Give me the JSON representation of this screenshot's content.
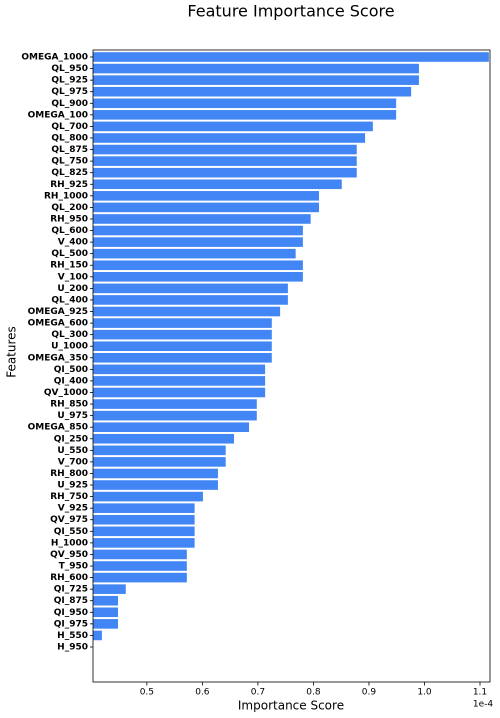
{
  "chart_data": {
    "type": "barh",
    "title": "Feature Importance Score",
    "x_label": "Importance Score",
    "y_label": "Features",
    "offset_label": "1e-4",
    "color": "#4285f4",
    "categories": [
      "OMEGA_1000",
      "QL_950",
      "QL_925",
      "QL_975",
      "QL_900",
      "OMEGA_100",
      "QL_700",
      "QL_800",
      "QL_875",
      "QL_750",
      "QL_825",
      "RH_925",
      "RH_1000",
      "QL_200",
      "RH_950",
      "QL_600",
      "V_400",
      "QL_500",
      "RH_150",
      "V_100",
      "U_200",
      "QL_400",
      "OMEGA_925",
      "OMEGA_600",
      "QL_300",
      "U_1000",
      "OMEGA_350",
      "QI_500",
      "QI_400",
      "QV_1000",
      "RH_850",
      "U_975",
      "OMEGA_850",
      "QI_250",
      "U_550",
      "V_700",
      "RH_800",
      "U_925",
      "RH_750",
      "V_925",
      "QV_975",
      "QI_550",
      "H_1000",
      "QV_950",
      "T_950",
      "RH_600",
      "QI_725",
      "QI_875",
      "QI_950",
      "QI_975",
      "H_550",
      "H_950"
    ],
    "values": [
      1.116,
      0.99,
      0.99,
      0.976,
      0.949,
      0.949,
      0.907,
      0.893,
      0.878,
      0.878,
      0.878,
      0.851,
      0.81,
      0.81,
      0.795,
      0.781,
      0.781,
      0.768,
      0.781,
      0.781,
      0.754,
      0.754,
      0.74,
      0.725,
      0.725,
      0.725,
      0.725,
      0.713,
      0.713,
      0.713,
      0.698,
      0.698,
      0.684,
      0.657,
      0.642,
      0.642,
      0.628,
      0.628,
      0.601,
      0.586,
      0.586,
      0.586,
      0.586,
      0.572,
      0.572,
      0.572,
      0.462,
      0.448,
      0.448,
      0.448,
      0.419,
      0.403
    ],
    "xlim": [
      0.403,
      1.118
    ],
    "xticks": [
      0.5,
      0.6,
      0.7,
      0.8,
      0.9,
      {
        "value": 1,
        "label": "1.0"
      },
      1.1
    ]
  }
}
